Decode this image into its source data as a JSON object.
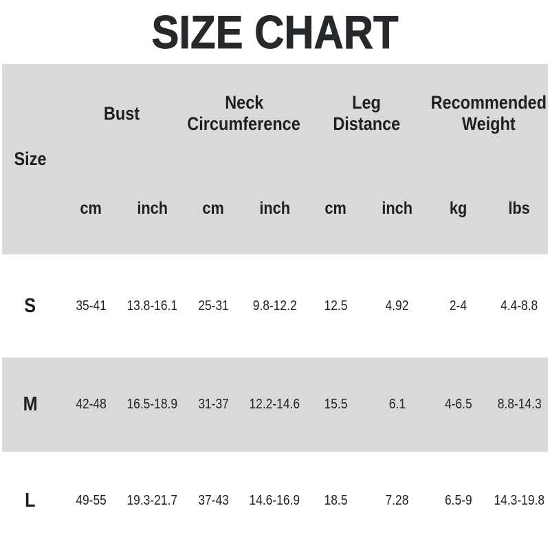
{
  "title": "SIZE CHART",
  "colors": {
    "band_gray": "#d9d9d9",
    "text": "#1f1f1f",
    "title": "#26292c",
    "background": "#ffffff"
  },
  "table": {
    "size_label": "Size",
    "groups": [
      {
        "label": "Bust",
        "lines": [
          "Bust"
        ]
      },
      {
        "label": "Neck Circumference",
        "lines": [
          "Neck",
          "Circumference"
        ]
      },
      {
        "label": "Leg Distance",
        "lines": [
          "Leg",
          "Distance"
        ]
      },
      {
        "label": "Recommended Weight",
        "lines": [
          "Recommended",
          "Weight"
        ]
      }
    ],
    "units": [
      "cm",
      "inch",
      "cm",
      "inch",
      "cm",
      "inch",
      "kg",
      "lbs"
    ],
    "rows": [
      {
        "size": "S",
        "values": [
          "35-41",
          "13.8-16.1",
          "25-31",
          "9.8-12.2",
          "12.5",
          "4.92",
          "2-4",
          "4.4-8.8"
        ]
      },
      {
        "size": "M",
        "values": [
          "42-48",
          "16.5-18.9",
          "31-37",
          "12.2-14.6",
          "15.5",
          "6.1",
          "4-6.5",
          "8.8-14.3"
        ]
      },
      {
        "size": "L",
        "values": [
          "49-55",
          "19.3-21.7",
          "37-43",
          "14.6-16.9",
          "18.5",
          "7.28",
          "6.5-9",
          "14.3-19.8"
        ]
      }
    ]
  },
  "chart_data": {
    "type": "table",
    "title": "SIZE CHART",
    "columns": [
      "Size",
      "Bust cm",
      "Bust inch",
      "Neck Circumference cm",
      "Neck Circumference inch",
      "Leg Distance cm",
      "Leg Distance inch",
      "Recommended Weight kg",
      "Recommended Weight lbs"
    ],
    "rows": [
      [
        "S",
        "35-41",
        "13.8-16.1",
        "25-31",
        "9.8-12.2",
        "12.5",
        "4.92",
        "2-4",
        "4.4-8.8"
      ],
      [
        "M",
        "42-48",
        "16.5-18.9",
        "31-37",
        "12.2-14.6",
        "15.5",
        "6.1",
        "4-6.5",
        "8.8-14.3"
      ],
      [
        "L",
        "49-55",
        "19.3-21.7",
        "37-43",
        "14.6-16.9",
        "18.5",
        "7.28",
        "6.5-9",
        "14.3-19.8"
      ]
    ]
  }
}
